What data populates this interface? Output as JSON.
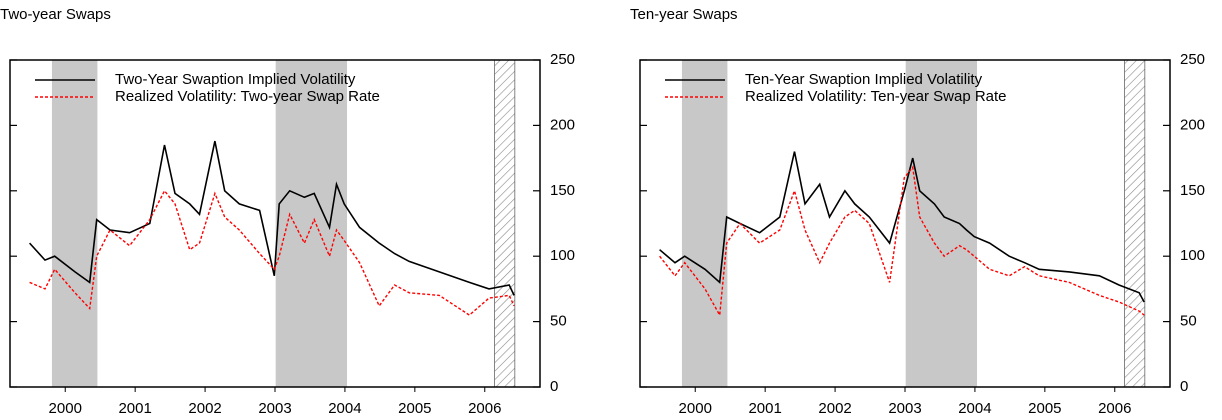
{
  "chart_data": [
    {
      "type": "line",
      "title": "Two-year Swaps",
      "x": [
        1999.99,
        2000.21,
        2000.35,
        2000.64,
        2000.85,
        2000.95,
        2001.14,
        2001.42,
        2001.71,
        2001.92,
        2002.07,
        2002.28,
        2002.42,
        2002.64,
        2002.78,
        2002.99,
        2003.28,
        2003.49,
        2003.56,
        2003.71,
        2003.92,
        2004.06,
        2004.28,
        2004.38,
        2004.49,
        2004.71,
        2004.99,
        2005.21,
        2005.42,
        2005.85,
        2006.28,
        2006.56,
        2006.85,
        2006.92
      ],
      "series": [
        {
          "name": "Two-Year Swaption Implied Volatility",
          "color": "#000000",
          "style": "solid",
          "values": [
            110,
            97,
            100,
            88,
            80,
            128,
            120,
            118,
            125,
            185,
            148,
            140,
            132,
            188,
            150,
            140,
            135,
            85,
            140,
            150,
            145,
            148,
            122,
            155,
            140,
            122,
            110,
            102,
            96,
            88,
            80,
            75,
            78,
            70
          ]
        },
        {
          "name": "Realized Volatility: Two-year Swap Rate",
          "color": "#ff0000",
          "style": "dashed",
          "values": [
            80,
            75,
            90,
            72,
            60,
            100,
            120,
            108,
            128,
            150,
            140,
            105,
            110,
            148,
            130,
            120,
            102,
            90,
            100,
            132,
            110,
            128,
            100,
            120,
            112,
            95,
            62,
            78,
            72,
            70,
            55,
            68,
            70,
            62
          ]
        }
      ],
      "shaded_periods": [
        [
          2000.31,
          2000.96
        ],
        [
          2003.51,
          2004.53
        ]
      ],
      "hatched_period": [
        2006.64,
        2006.93
      ],
      "xlim": [
        1999.71,
        2007.29
      ],
      "xticks": [
        {
          "value": 2000.5,
          "label": "2000"
        },
        {
          "value": 2001.5,
          "label": "2001"
        },
        {
          "value": 2002.5,
          "label": "2002"
        },
        {
          "value": 2003.5,
          "label": "2003"
        },
        {
          "value": 2004.5,
          "label": "2004"
        },
        {
          "value": 2005.5,
          "label": "2005"
        },
        {
          "value": 2006.5,
          "label": "2006"
        }
      ],
      "ylim": [
        0,
        250
      ],
      "yticks": [
        0,
        50,
        100,
        150,
        200,
        250
      ],
      "legend": "upper left"
    },
    {
      "type": "line",
      "title": "Ten-year Swaps",
      "x": [
        1999.99,
        2000.21,
        2000.35,
        2000.64,
        2000.85,
        2000.95,
        2001.14,
        2001.42,
        2001.71,
        2001.92,
        2002.07,
        2002.28,
        2002.42,
        2002.64,
        2002.78,
        2002.99,
        2003.28,
        2003.49,
        2003.61,
        2003.71,
        2003.92,
        2004.06,
        2004.28,
        2004.38,
        2004.49,
        2004.71,
        2004.99,
        2005.21,
        2005.42,
        2005.85,
        2006.28,
        2006.56,
        2006.85,
        2006.92
      ],
      "series": [
        {
          "name": "Ten-Year Swaption Implied Volatility",
          "color": "#000000",
          "style": "solid",
          "values": [
            105,
            95,
            100,
            90,
            80,
            130,
            125,
            118,
            130,
            180,
            140,
            155,
            130,
            150,
            140,
            130,
            110,
            150,
            175,
            150,
            140,
            130,
            125,
            120,
            115,
            110,
            100,
            95,
            90,
            88,
            85,
            78,
            72,
            65
          ]
        },
        {
          "name": "Realized Volatility: Ten-year Swap Rate",
          "color": "#ff0000",
          "style": "dashed",
          "values": [
            100,
            85,
            95,
            75,
            55,
            110,
            125,
            110,
            120,
            150,
            120,
            95,
            110,
            130,
            135,
            125,
            80,
            160,
            168,
            130,
            110,
            100,
            108,
            105,
            100,
            90,
            85,
            92,
            85,
            80,
            70,
            65,
            58,
            55
          ]
        }
      ],
      "shaded_periods": [
        [
          2000.31,
          2000.96
        ],
        [
          2003.51,
          2004.53
        ]
      ],
      "hatched_period": [
        2006.64,
        2006.93
      ],
      "xlim": [
        1999.71,
        2007.29
      ],
      "xticks": [
        {
          "value": 2000.5,
          "label": "2000"
        },
        {
          "value": 2001.5,
          "label": "2001"
        },
        {
          "value": 2002.5,
          "label": "2002"
        },
        {
          "value": 2003.5,
          "label": "2003"
        },
        {
          "value": 2004.5,
          "label": "2004"
        },
        {
          "value": 2005.5,
          "label": "2005"
        },
        {
          "value": 2006.5,
          "label": "2006"
        }
      ],
      "ylim": [
        0,
        250
      ],
      "yticks": [
        0,
        50,
        100,
        150,
        200,
        250
      ],
      "legend": "upper left"
    }
  ]
}
